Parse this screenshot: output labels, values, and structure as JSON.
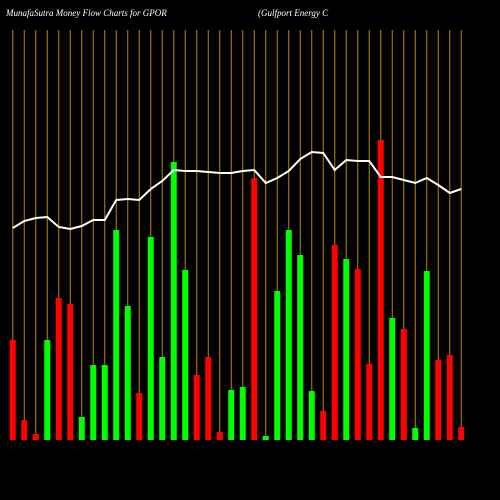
{
  "chart_data": {
    "type": "bar",
    "title": "MunafaSutra  Money Flow  Charts for GPOR",
    "subtitle": "(Gulfport Energy C",
    "categories": [
      null,
      null,
      null,
      null,
      null,
      null,
      null,
      null,
      null,
      null,
      null,
      null,
      null,
      null,
      null,
      null,
      null,
      null,
      null,
      null,
      null,
      null,
      null,
      null,
      null,
      null,
      null,
      null,
      null,
      null,
      null,
      null,
      null,
      null,
      null,
      null,
      null,
      null,
      null,
      null
    ],
    "values": [
      100,
      20,
      6,
      100,
      142,
      136,
      23,
      75,
      75,
      210,
      134,
      47,
      203,
      83,
      278,
      170,
      65,
      83,
      8,
      50,
      53,
      262,
      4,
      149,
      210,
      185,
      49,
      29,
      195,
      181,
      171,
      76,
      300,
      122,
      111,
      12,
      169,
      80,
      85,
      13
    ],
    "colors": [
      "#ff0000",
      "#ff0000",
      "#ff0000",
      "#00ff00",
      "#ff0000",
      "#ff0000",
      "#00ff00",
      "#00ff00",
      "#00ff00",
      "#00ff00",
      "#00ff00",
      "#ff0000",
      "#00ff00",
      "#00ff00",
      "#00ff00",
      "#00ff00",
      "#ff0000",
      "#ff0000",
      "#ff0000",
      "#00ff00",
      "#00ff00",
      "#ff0000",
      "#00ff00",
      "#00ff00",
      "#00ff00",
      "#00ff00",
      "#00ff00",
      "#ff0000",
      "#ff0000",
      "#00ff00",
      "#ff0000",
      "#ff0000",
      "#ff0000",
      "#00ff00",
      "#ff0000",
      "#00ff00",
      "#00ff00",
      "#ff0000",
      "#ff0000",
      "#ff0000"
    ],
    "line_values": [
      212,
      219,
      222,
      223,
      213,
      211,
      214,
      220,
      220,
      240,
      241,
      240,
      251,
      259,
      270,
      269,
      269,
      268,
      267,
      267,
      269,
      270,
      257,
      262,
      269,
      281,
      288,
      287,
      270,
      280,
      279,
      279,
      263,
      263,
      260,
      257,
      262,
      255,
      247,
      251
    ],
    "line_color": "#ffffff",
    "grid_color": "#b8860b",
    "ylim": [
      0,
      440
    ]
  }
}
